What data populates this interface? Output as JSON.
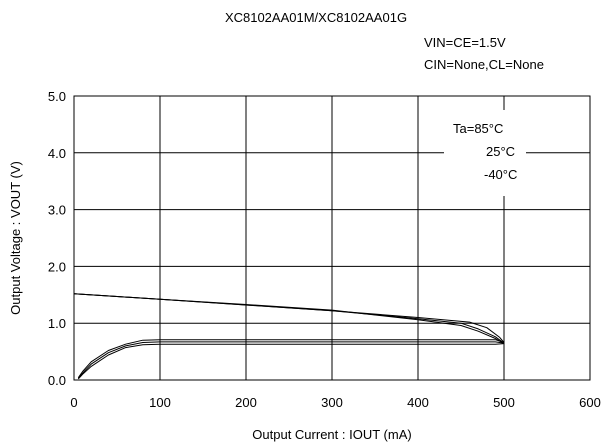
{
  "chart_data": {
    "type": "line",
    "title": "XC8102AA01M/XC8102AA01G",
    "conditions": [
      "VIN=CE=1.5V",
      "CIN=None,CL=None"
    ],
    "xlabel": "Output Current : IOUT (mA)",
    "ylabel": "Output Voltage : VOUT (V)",
    "xlim": [
      0,
      600
    ],
    "ylim": [
      0,
      5
    ],
    "xticks": [
      "0",
      "100",
      "200",
      "300",
      "400",
      "500",
      "600"
    ],
    "yticks": [
      "0.0",
      "1.0",
      "2.0",
      "3.0",
      "4.0",
      "5.0"
    ],
    "grid": true,
    "legend_position": "top-right",
    "legend": [
      "Ta=85°C",
      "25°C",
      "-40°C"
    ],
    "series": [
      {
        "name": "Ta=85°C",
        "x": [
          0,
          50,
          100,
          200,
          300,
          400,
          450,
          470,
          490,
          500,
          490,
          400,
          300,
          200,
          100,
          80,
          60,
          40,
          20,
          10,
          5
        ],
        "y": [
          1.52,
          1.47,
          1.42,
          1.33,
          1.23,
          1.06,
          0.96,
          0.86,
          0.73,
          0.64,
          0.63,
          0.63,
          0.63,
          0.63,
          0.63,
          0.62,
          0.57,
          0.44,
          0.24,
          0.1,
          0.02
        ]
      },
      {
        "name": "25°C",
        "x": [
          0,
          50,
          100,
          200,
          300,
          400,
          450,
          470,
          490,
          500,
          490,
          400,
          300,
          200,
          100,
          80,
          60,
          40,
          20,
          10,
          5
        ],
        "y": [
          1.52,
          1.47,
          1.42,
          1.32,
          1.22,
          1.08,
          1.0,
          0.9,
          0.76,
          0.65,
          0.67,
          0.67,
          0.67,
          0.67,
          0.67,
          0.66,
          0.6,
          0.48,
          0.28,
          0.12,
          0.03
        ]
      },
      {
        "name": "-40°C",
        "x": [
          0,
          50,
          100,
          200,
          300,
          400,
          460,
          480,
          495,
          500,
          490,
          400,
          300,
          200,
          100,
          80,
          60,
          40,
          20,
          10,
          5
        ],
        "y": [
          1.52,
          1.47,
          1.42,
          1.32,
          1.22,
          1.1,
          1.02,
          0.92,
          0.75,
          0.66,
          0.71,
          0.71,
          0.71,
          0.71,
          0.71,
          0.7,
          0.63,
          0.52,
          0.32,
          0.15,
          0.04
        ]
      }
    ]
  }
}
